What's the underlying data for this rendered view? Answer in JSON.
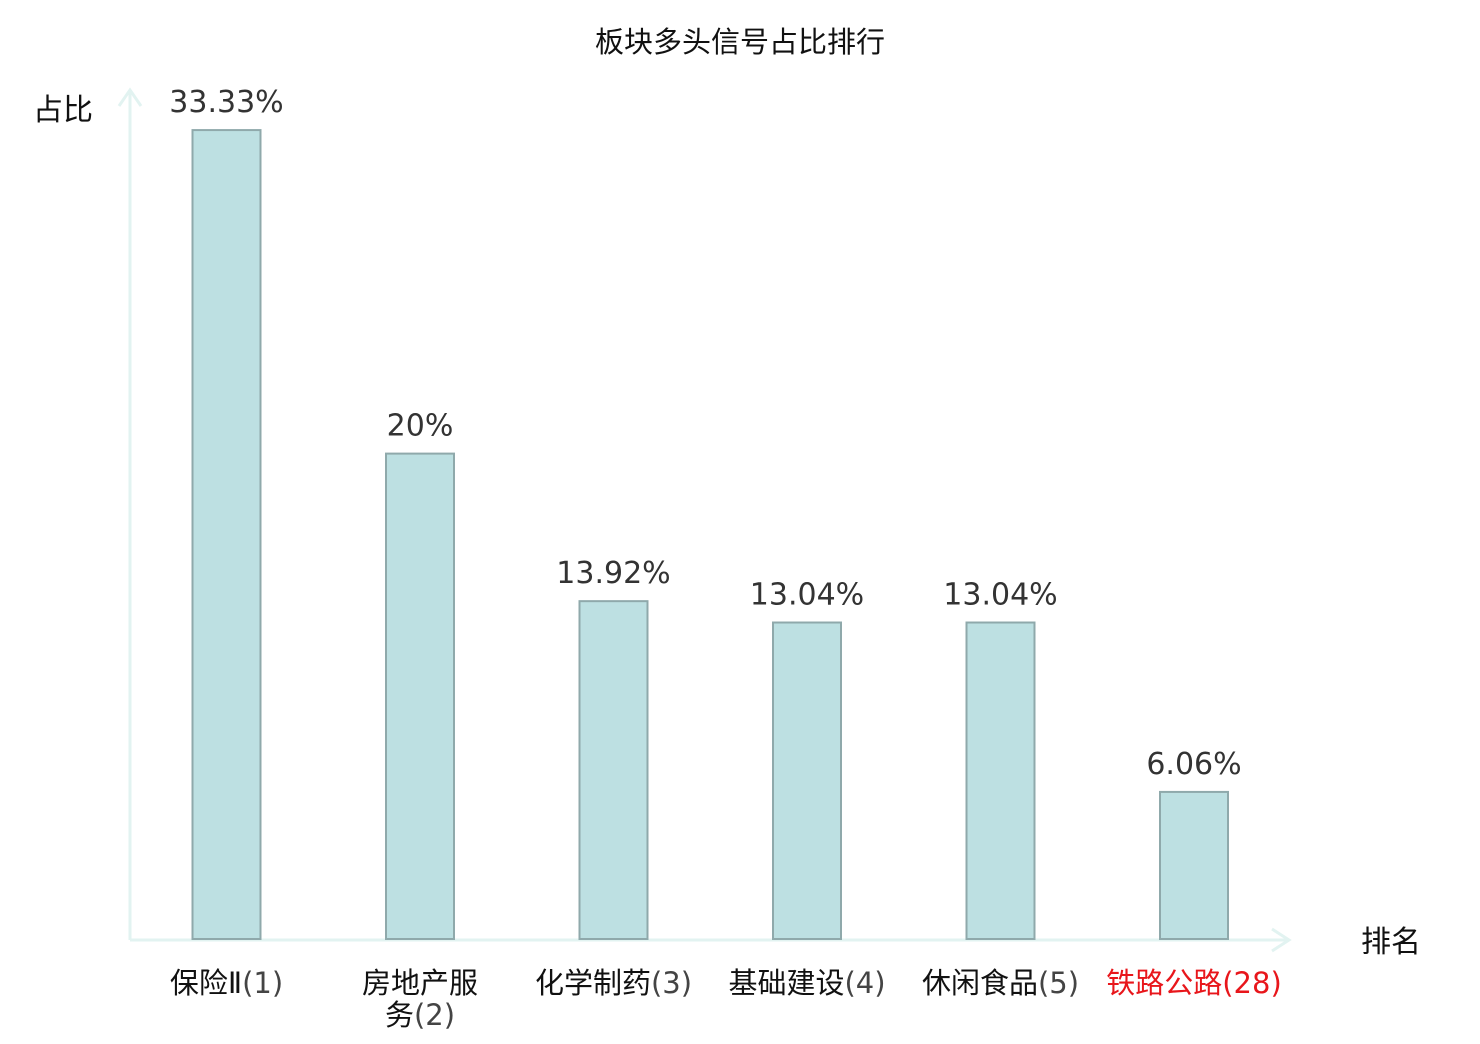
{
  "chart_data": {
    "type": "bar",
    "title": "板块多头信号占比排行",
    "ylabel": "占比",
    "xlabel": "排名",
    "ylim": [
      0,
      35
    ],
    "grid": false,
    "legend": "none",
    "categories": [
      {
        "name": "保险Ⅱ",
        "rank": "(1)",
        "highlight": false
      },
      {
        "name": "房地产服务",
        "rank": "(2)",
        "highlight": false
      },
      {
        "name": "化学制药",
        "rank": "(3)",
        "highlight": false
      },
      {
        "name": "基础建设",
        "rank": "(4)",
        "highlight": false
      },
      {
        "name": "休闲食品",
        "rank": "(5)",
        "highlight": false
      },
      {
        "name": "铁路公路",
        "rank": "(28)",
        "highlight": true
      }
    ],
    "values": [
      33.33,
      20,
      13.92,
      13.04,
      13.04,
      6.06
    ],
    "value_labels": [
      "33.33%",
      "20%",
      "13.92%",
      "13.04%",
      "13.04%",
      "6.06%"
    ],
    "colors": {
      "bar_fill": "#bde0e2",
      "bar_stroke": "#8fa9ab",
      "axis": "#e2f3f1",
      "highlight_text": "#e8161b",
      "normal_text": "#111111",
      "rank_text": "#444444"
    }
  }
}
